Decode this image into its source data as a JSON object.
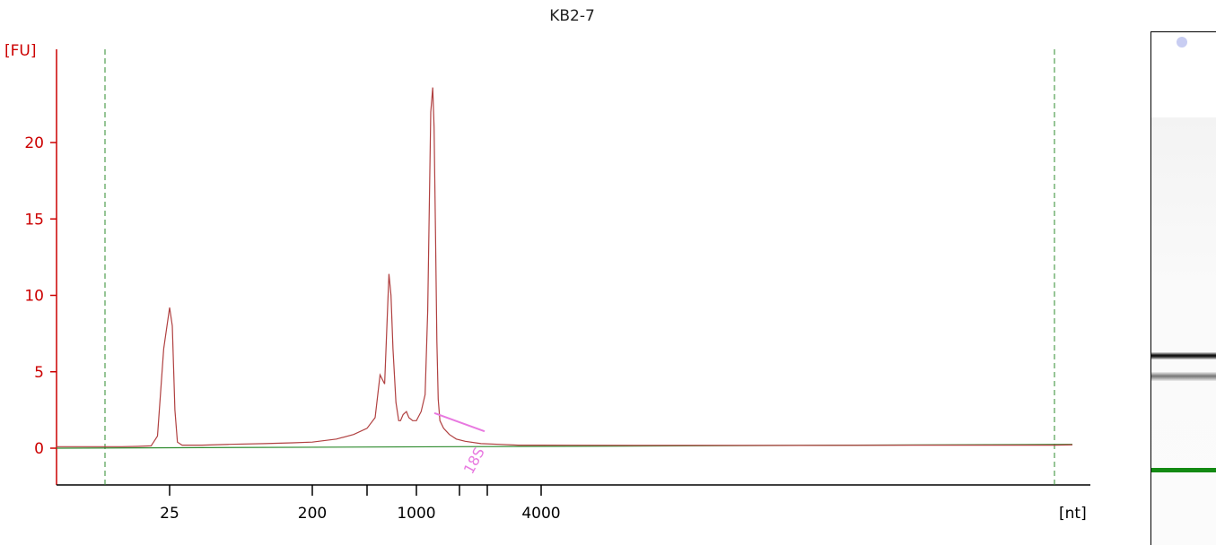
{
  "chart_data": {
    "type": "line",
    "title": "KB2-7",
    "xlabel": "[nt]",
    "ylabel": "[FU]",
    "y_ticks": [
      0,
      5,
      10,
      15,
      20
    ],
    "ylim": [
      -2.2,
      25.5
    ],
    "x_scale": "log-ish (sizing ladder)",
    "x_tick_labels": [
      "25",
      "200",
      "1000",
      "4000"
    ],
    "peak_annotation": "18S",
    "series": [
      {
        "color": "#b04040",
        "x": [
          16,
          18,
          20,
          22,
          23,
          24,
          25,
          26,
          27,
          28,
          30,
          40,
          60,
          100,
          150,
          200,
          300,
          400,
          500,
          560,
          600,
          640,
          680,
          700,
          720,
          750,
          780,
          800,
          830,
          870,
          900,
          950,
          1000,
          1080,
          1150,
          1200,
          1260,
          1300,
          1330,
          1360,
          1390,
          1420,
          1460,
          1550,
          1700,
          1900,
          2100,
          2400,
          2800,
          3300,
          4000,
          5000,
          7000,
          10000,
          14000
        ],
        "y": [
          0.1,
          0.1,
          0.12,
          0.15,
          0.8,
          6.5,
          9.2,
          8.0,
          2.5,
          0.4,
          0.2,
          0.2,
          0.25,
          0.3,
          0.35,
          0.4,
          0.6,
          0.9,
          1.3,
          2.0,
          4.8,
          4.2,
          11.4,
          10.0,
          6.5,
          3.0,
          1.8,
          1.8,
          2.2,
          2.4,
          2.0,
          1.8,
          1.8,
          2.4,
          3.5,
          9.0,
          22.0,
          23.6,
          21.0,
          14.0,
          7.0,
          3.2,
          1.8,
          1.3,
          0.9,
          0.6,
          0.45,
          0.3,
          0.25,
          0.2,
          0.2,
          0.18,
          0.18,
          0.2,
          0.2
        ]
      }
    ],
    "baseline": {
      "color": "#2e8b2e",
      "y_start": 0.0,
      "y_end": 0.25
    }
  }
}
